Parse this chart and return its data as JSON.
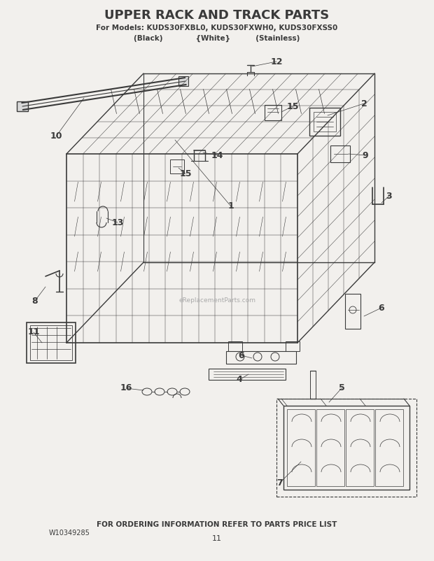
{
  "title": "UPPER RACK AND TRACK PARTS",
  "subtitle": "For Models: KUDS30FXBL0, KUDS30FXWH0, KUDS30FXSS0",
  "subtitle2": "(Black)             {White}          (Stainless)",
  "footer_left": "W10349285",
  "footer_center": "FOR ORDERING INFORMATION REFER TO PARTS PRICE LIST",
  "footer_page": "11",
  "bg_color": "#f2f0ed",
  "line_color": "#3a3a3a",
  "watermark": "eReplacementParts.com"
}
